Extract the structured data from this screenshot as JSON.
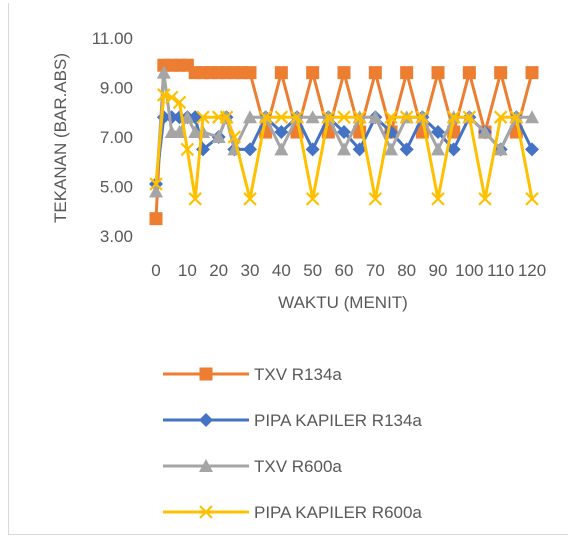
{
  "chart_data": {
    "type": "line",
    "xlabel": "WAKTU (MENIT)",
    "ylabel": "TEKANAN (BAR.ABS)",
    "ylim": [
      3.0,
      11.0
    ],
    "yticks": [
      "3.00",
      "5.00",
      "7.00",
      "9.00",
      "11.00"
    ],
    "xticks": [
      "0",
      "10",
      "20",
      "30",
      "40",
      "50",
      "60",
      "70",
      "80",
      "90",
      "100",
      "110",
      "120"
    ],
    "xlim": [
      0,
      120
    ],
    "grid": false,
    "legend_position": "bottom",
    "series": [
      {
        "name": "TXV R134a",
        "color": "#ED7D31",
        "marker": "square",
        "x": [
          0,
          2.5,
          5,
          7.5,
          10,
          12.5,
          15,
          17.5,
          20,
          22.5,
          25,
          27.5,
          30,
          35,
          40,
          45,
          50,
          55,
          60,
          65,
          70,
          75,
          80,
          85,
          90,
          95,
          100,
          105,
          110,
          115,
          120
        ],
        "y": [
          3.7,
          9.9,
          9.9,
          9.9,
          9.9,
          9.6,
          9.6,
          9.6,
          9.6,
          9.6,
          9.6,
          9.6,
          9.6,
          7.2,
          9.6,
          7.2,
          9.6,
          7.2,
          9.6,
          7.2,
          9.6,
          7.2,
          9.6,
          7.2,
          9.6,
          7.2,
          9.6,
          7.2,
          9.6,
          7.2,
          9.6
        ]
      },
      {
        "name": "PIPA KAPILER R134a",
        "color": "#4472C4",
        "marker": "diamond",
        "x": [
          0,
          2.5,
          5,
          7.5,
          10,
          12.5,
          15,
          20,
          22.5,
          25,
          30,
          35,
          40,
          45,
          50,
          55,
          60,
          65,
          70,
          75,
          80,
          85,
          90,
          95,
          100,
          105,
          110,
          115,
          120
        ],
        "y": [
          5.1,
          7.8,
          7.8,
          7.8,
          7.8,
          7.8,
          6.5,
          7.0,
          7.8,
          6.5,
          6.5,
          7.8,
          7.2,
          7.8,
          6.5,
          7.8,
          7.2,
          6.5,
          7.8,
          7.2,
          6.5,
          7.8,
          7.2,
          6.5,
          7.8,
          7.2,
          6.5,
          7.8,
          6.5
        ]
      },
      {
        "name": "TXV R600a",
        "color": "#A5A5A5",
        "marker": "triangle",
        "x": [
          0,
          2.5,
          5,
          7.5,
          10,
          12.5,
          15,
          20,
          22.5,
          25,
          30,
          35,
          40,
          45,
          50,
          55,
          60,
          65,
          70,
          75,
          80,
          85,
          90,
          95,
          100,
          105,
          110,
          115,
          120
        ],
        "y": [
          4.8,
          9.6,
          7.2,
          7.2,
          7.8,
          7.2,
          7.2,
          7.0,
          7.8,
          6.5,
          7.8,
          7.8,
          6.5,
          7.8,
          7.8,
          7.8,
          6.5,
          7.8,
          7.8,
          6.5,
          7.8,
          7.8,
          6.5,
          7.8,
          7.8,
          7.2,
          6.5,
          7.8,
          7.8
        ]
      },
      {
        "name": "PIPA KAPILER R600a",
        "color": "#FFC000",
        "marker": "x",
        "x": [
          0,
          2.5,
          5,
          7.5,
          10,
          12.5,
          15,
          20,
          22.5,
          25,
          30,
          35,
          40,
          45,
          50,
          55,
          60,
          65,
          70,
          75,
          80,
          85,
          90,
          95,
          100,
          105,
          110,
          115,
          120
        ],
        "y": [
          5.1,
          8.7,
          8.6,
          8.4,
          6.5,
          4.5,
          7.8,
          7.8,
          7.8,
          7.0,
          4.5,
          7.8,
          7.8,
          7.8,
          4.5,
          7.8,
          7.8,
          7.8,
          4.5,
          7.8,
          7.8,
          7.8,
          4.5,
          7.8,
          7.8,
          4.5,
          7.8,
          7.8,
          4.5
        ]
      }
    ]
  }
}
